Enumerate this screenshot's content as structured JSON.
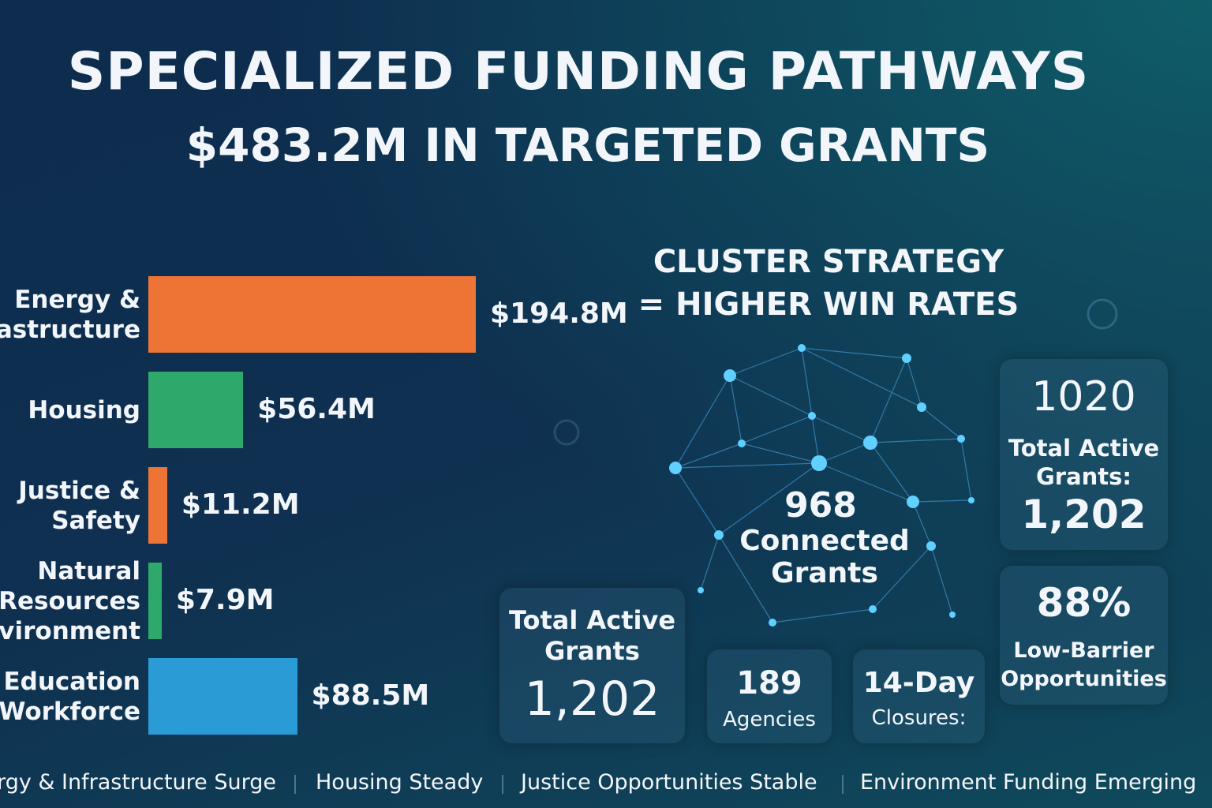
{
  "header": {
    "title": "SPECIALIZED FUNDING PATHWAYS",
    "subtitle": "$483.2M IN TARGETED GRANTS"
  },
  "chart_data": {
    "type": "bar",
    "orientation": "horizontal",
    "categories": [
      "Energy &\nInfrastructure",
      "Housing",
      "Justice &\nSafety",
      "Natural\nResources\nEnvironment",
      "Education\nWorkforce"
    ],
    "values": [
      194.8,
      56.4,
      11.2,
      7.9,
      88.5
    ],
    "value_labels": [
      "$194.8M",
      "$56.4M",
      "$11.2M",
      "$7.9M",
      "$88.5M"
    ],
    "colors": [
      "#ee7436",
      "#2fa86b",
      "#ee7436",
      "#2fa86b",
      "#2b9bd6"
    ]
  },
  "cluster": {
    "title": "CLUSTER STRATEGY\n= HIGHER WIN RATES",
    "count": "968",
    "label": "Connected\nGrants"
  },
  "cards": [
    {
      "value": "1020",
      "label": "Total Active\nGrants:",
      "extra": "1,202"
    },
    {
      "value": "88%",
      "label": "Low-Barrier\nOpportunities"
    },
    {
      "label": "Total Active\nGrants",
      "value": "1,202"
    },
    {
      "value": "189",
      "label": "Agencies"
    },
    {
      "value": "14-Day",
      "label": "Closures:"
    }
  ],
  "ticker": [
    "Energy & Infrastructure Surge",
    "Housing Steady",
    "Justice Opportunities Stable",
    "Environment Funding Emerging"
  ]
}
